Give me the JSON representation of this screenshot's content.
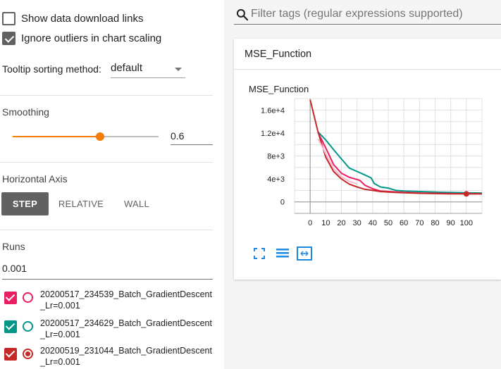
{
  "sidebar": {
    "show_download_links": {
      "label": "Show data download links",
      "checked": false
    },
    "ignore_outliers": {
      "label": "Ignore outliers in chart scaling",
      "checked": true
    },
    "tooltip_sort": {
      "label": "Tooltip sorting method:",
      "value": "default"
    },
    "smoothing": {
      "label": "Smoothing",
      "value": "0.6",
      "fraction": 0.6
    },
    "horizontal_axis": {
      "label": "Horizontal Axis",
      "options": [
        "STEP",
        "RELATIVE",
        "WALL"
      ],
      "selected": "STEP"
    },
    "runs": {
      "label": "Runs",
      "filter": "0.001",
      "items": [
        {
          "name": "20200517_234539_Batch_GradientDescent_Lr=0.001",
          "color": "#e91e63",
          "checked": true,
          "radio_selected": false
        },
        {
          "name": "20200517_234629_Batch_GradientDescent_Lr=0.001",
          "color": "#009688",
          "checked": true,
          "radio_selected": false
        },
        {
          "name": "20200519_231044_Batch_GradientDescent_Lr=0.001",
          "color": "#c62828",
          "checked": true,
          "radio_selected": true
        }
      ]
    }
  },
  "main": {
    "search_placeholder": "Filter tags (regular expressions supported)",
    "card": {
      "title": "MSE_Function"
    }
  },
  "icons": [
    "search-icon",
    "expand-icon",
    "list-icon",
    "fit-domain-icon"
  ],
  "chart_data": {
    "type": "line",
    "title": "MSE_Function",
    "xlabel": "",
    "ylabel": "",
    "xlim": [
      -10,
      110
    ],
    "ylim": [
      -2000,
      18000
    ],
    "x_ticks": [
      "0",
      "10",
      "20",
      "30",
      "40",
      "50",
      "60",
      "70",
      "80",
      "90",
      "100"
    ],
    "y_ticks": [
      "0",
      "4e+3",
      "8e+3",
      "1.2e+4",
      "1.6e+4"
    ],
    "series": [
      {
        "color": "#009688",
        "x": [
          5,
          10,
          15,
          20,
          25,
          30,
          35,
          39,
          41,
          45,
          50,
          55,
          60,
          70,
          80,
          90,
          100,
          110
        ],
        "y": [
          12200,
          10800,
          9100,
          7500,
          5900,
          5300,
          4700,
          4200,
          3200,
          2600,
          2400,
          2000,
          1900,
          1800,
          1700,
          1650,
          1600,
          1550
        ]
      },
      {
        "color": "#e91e63",
        "x": [
          5,
          10,
          15,
          20,
          25,
          30,
          32,
          35,
          40,
          45,
          50,
          60,
          70,
          80,
          90,
          100,
          110
        ],
        "y": [
          12100,
          9400,
          6500,
          5000,
          4300,
          3900,
          3700,
          2900,
          2300,
          1900,
          1800,
          1650,
          1550,
          1500,
          1450,
          1400,
          1400
        ]
      },
      {
        "color": "#c62828",
        "x": [
          0,
          5,
          10,
          15,
          20,
          25,
          30,
          35,
          40,
          45,
          50,
          60,
          70,
          80,
          90,
          100,
          110
        ],
        "y": [
          17800,
          12200,
          7800,
          5300,
          4000,
          3100,
          2600,
          2200,
          2000,
          1800,
          1700,
          1600,
          1500,
          1450,
          1400,
          1400,
          1400
        ],
        "highlight": {
          "x": 100,
          "y": 1400
        }
      },
      {
        "color": "#f8bbd0",
        "x": [
          5,
          10,
          15,
          20,
          25,
          30
        ],
        "y": [
          11000,
          8400,
          5800,
          4400,
          3600,
          3100
        ]
      }
    ],
    "grid": true
  }
}
